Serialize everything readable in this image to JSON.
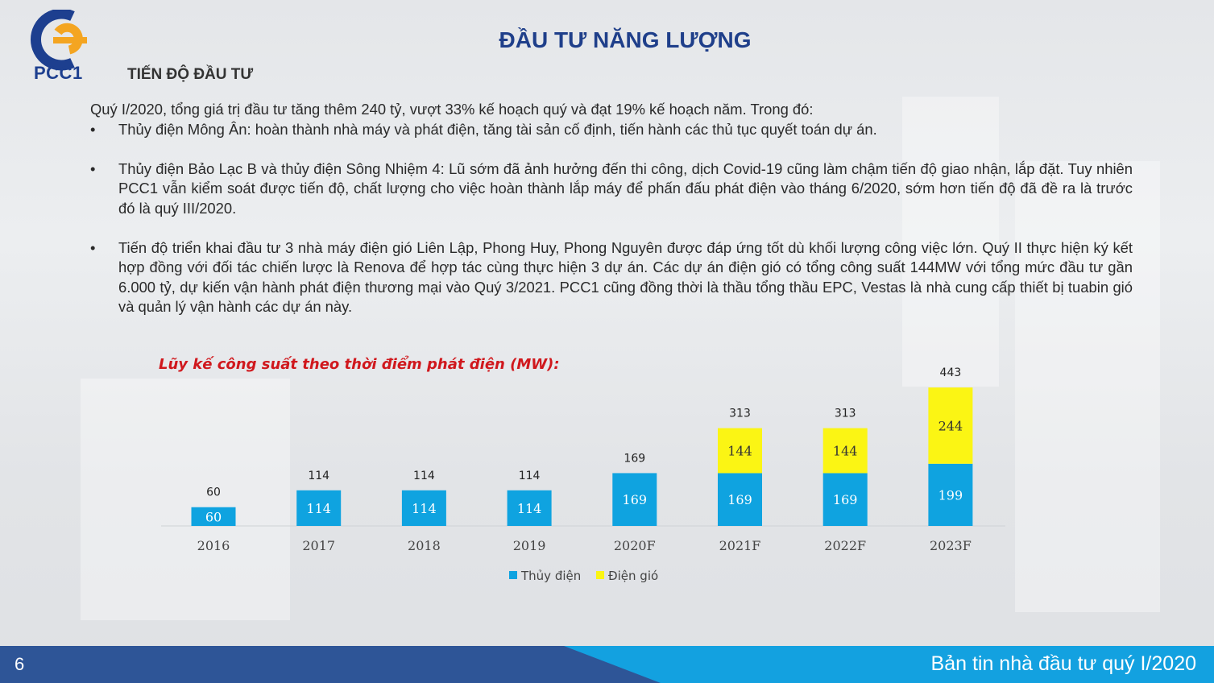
{
  "header": {
    "logo_text": "PCC1",
    "title": "ĐẦU TƯ NĂNG LƯỢNG",
    "section": "TIẾN ĐỘ ĐẦU TƯ"
  },
  "body": {
    "intro": "Quý I/2020, tổng giá trị đầu tư tăng thêm 240 tỷ, vượt 33% kế hoạch quý và đạt 19% kế hoạch năm. Trong đó:",
    "bullets": [
      "Thủy điện Mông Ân: hoàn thành nhà máy và phát điện, tăng tài sản cố định, tiến hành các thủ tục quyết toán dự án.",
      "Thủy điện Bảo Lạc B và thủy điện Sông Nhiệm 4: Lũ sớm đã ảnh hưởng đến thi công, dịch Covid-19 cũng làm chậm tiến độ giao nhận, lắp đặt. Tuy nhiên PCC1 vẫn kiểm soát được tiến độ, chất lượng cho việc hoàn thành lắp máy để phấn đấu phát điện vào tháng 6/2020, sớm hơn tiến độ đã đề ra là trước đó là quý III/2020.",
      "Tiến độ triển khai đầu tư 3 nhà máy điện gió Liên Lập, Phong Huy, Phong Nguyên được đáp ứng tốt dù khối lượng công việc lớn. Quý II thực hiện ký kết hợp đồng với đối tác chiến lược là Renova để hợp tác cùng thực hiện 3 dự án. Các dự án điện gió có tổng công suất 144MW với tổng mức đầu tư gần 6.000 tỷ, dự kiến vận hành phát điện thương mại vào Quý 3/2021. PCC1 cũng đồng thời là thầu tổng thầu EPC, Vestas là nhà cung cấp thiết bị tuabin gió và quản lý vận hành các dự án này."
    ],
    "bullet_symbol": "•"
  },
  "chart_data": {
    "type": "bar",
    "stacked": true,
    "title": "Lũy kế công suất theo thời điểm phát điện (MW):",
    "categories": [
      "2016",
      "2017",
      "2018",
      "2019",
      "2020F",
      "2021F",
      "2022F",
      "2023F"
    ],
    "series": [
      {
        "name": "Thủy điện",
        "color": "#0fa3e0",
        "values": [
          60,
          114,
          114,
          114,
          169,
          169,
          169,
          199
        ]
      },
      {
        "name": "Điện gió",
        "color": "#fbf514",
        "values": [
          0,
          0,
          0,
          0,
          0,
          144,
          144,
          244
        ]
      }
    ],
    "totals": [
      60,
      114,
      114,
      114,
      169,
      313,
      313,
      443
    ],
    "legend": "bottom",
    "grid": false
  },
  "footer": {
    "page_number": "6",
    "text": "Bản tin nhà đầu tư quý I/2020",
    "colors": {
      "dark": "#2e5597",
      "light": "#13a1e0"
    }
  }
}
